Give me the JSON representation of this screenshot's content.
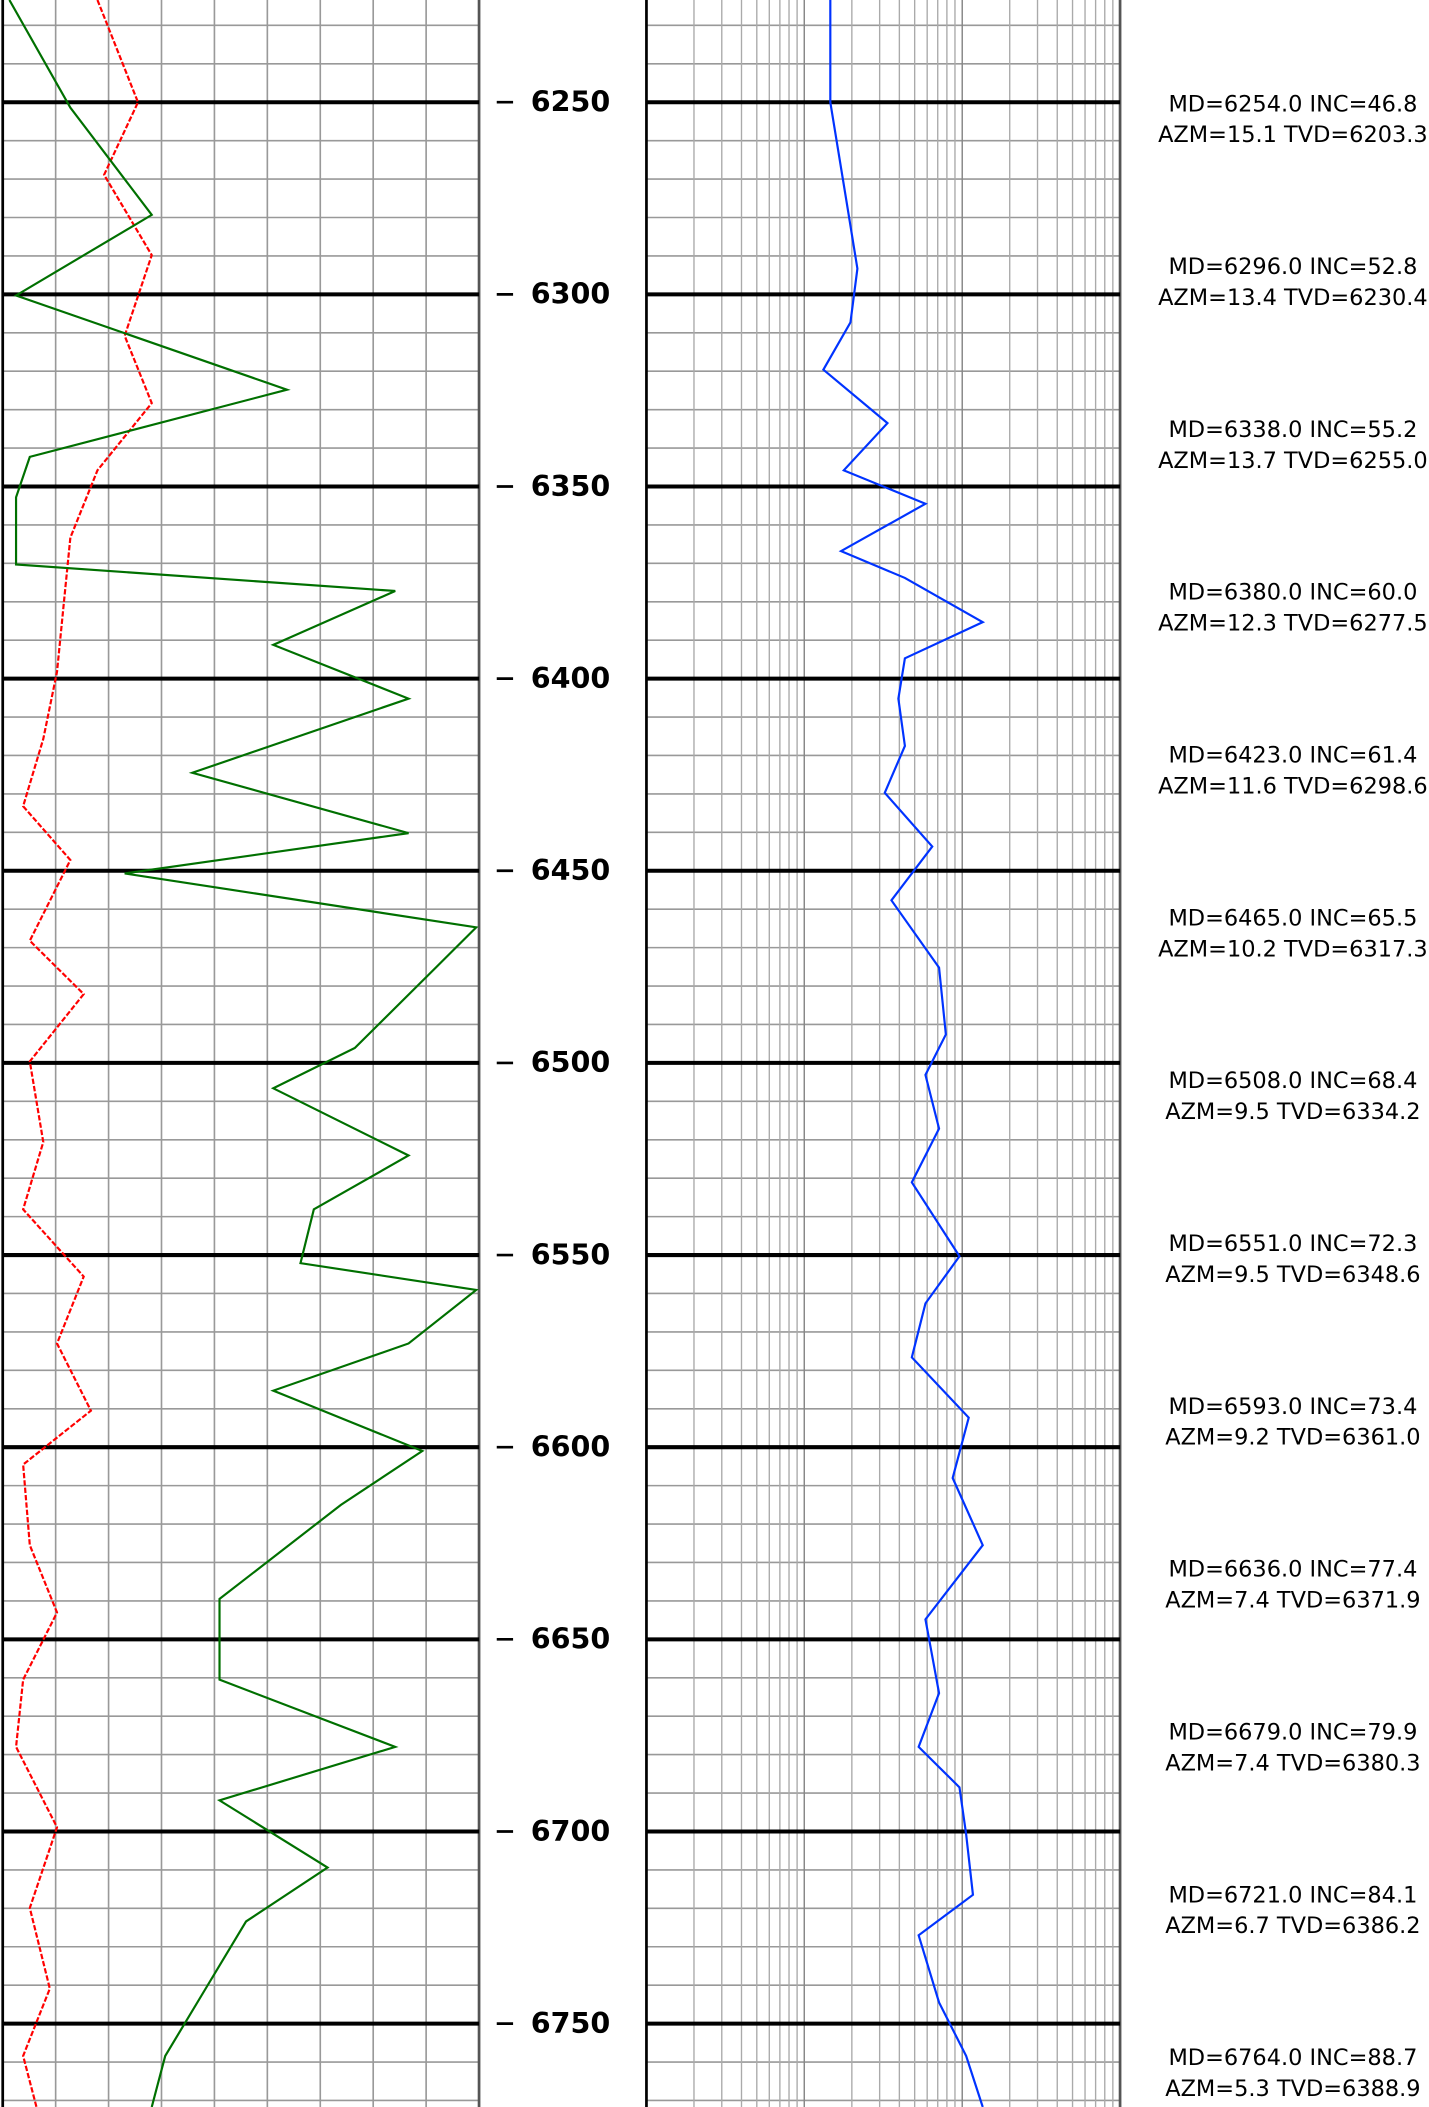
{
  "chart_data": {
    "type": "line",
    "ylim": [
      6223.4,
      6771.7
    ],
    "yticks": [
      6250,
      6300,
      6350,
      6400,
      6450,
      6500,
      6550,
      6600,
      6650,
      6700,
      6750
    ],
    "tracks": [
      {
        "xlim": [
          0,
          100
        ],
        "log": false,
        "series": [
          {
            "color": "#ff0000",
            "depths": [
              6223.4,
              6250.0,
              6268.9,
              6289.8,
              6310.8,
              6328.3,
              6345.8,
              6363.3,
              6380.7,
              6398.2,
              6415.7,
              6433.2,
              6447.2,
              6468.2,
              6482.1,
              6499.6,
              6520.6,
              6538.1,
              6555.6,
              6573.0,
              6590.5,
              6604.5,
              6625.5,
              6643.0,
              6660.5,
              6678.0,
              6698.9,
              6719.9,
              6740.9,
              6758.4,
              6771.7
            ],
            "values": [
              19.9,
              28.4,
              21.3,
              31.3,
              25.6,
              31.3,
              19.9,
              14.2,
              12.8,
              11.4,
              8.5,
              4.3,
              14.2,
              5.7,
              17.0,
              5.7,
              8.5,
              4.3,
              17.0,
              11.4,
              18.5,
              4.3,
              5.7,
              11.4,
              4.3,
              2.8,
              11.4,
              5.7,
              9.9,
              4.3,
              7.1
            ]
          },
          {
            "color": "#007000",
            "depths": [
              6223.4,
              6251.4,
              6279.3,
              6300.3,
              6324.8,
              6342.3,
              6352.8,
              6370.3,
              6377.2,
              6391.2,
              6405.2,
              6424.5,
              6440.2,
              6450.7,
              6464.7,
              6475.2,
              6496.1,
              6506.6,
              6524.1,
              6538.1,
              6552.1,
              6559.1,
              6573.0,
              6585.3,
              6601.0,
              6615.0,
              6639.5,
              6660.5,
              6678.0,
              6691.9,
              6709.4,
              6723.4,
              6740.9,
              6758.4,
              6771.7
            ],
            "values": [
              1.4,
              14.2,
              31.3,
              2.8,
              59.7,
              5.7,
              2.8,
              2.8,
              82.4,
              56.8,
              85.2,
              39.8,
              85.2,
              25.6,
              99.4,
              90.9,
              73.9,
              56.8,
              85.2,
              65.3,
              62.5,
              99.4,
              85.2,
              56.8,
              88.1,
              71.0,
              45.5,
              45.5,
              82.4,
              45.5,
              68.2,
              51.1,
              42.6,
              34.1,
              31.3
            ]
          }
        ]
      },
      {
        "xlim": [
          1,
          1000
        ],
        "log": true,
        "series": [
          {
            "color": "#0033ff",
            "depths": [
              6223.4,
              6250.0,
              6275.8,
              6293.3,
              6307.3,
              6319.6,
              6333.5,
              6345.8,
              6354.5,
              6366.8,
              6373.8,
              6385.3,
              6394.7,
              6405.2,
              6417.5,
              6429.7,
              6443.7,
              6457.7,
              6475.2,
              6492.6,
              6503.1,
              6517.1,
              6531.1,
              6550.3,
              6562.6,
              6576.6,
              6592.3,
              6608.0,
              6625.5,
              6644.8,
              6664.0,
              6678.0,
              6688.5,
              6700.7,
              6716.5,
              6727.0,
              6744.5,
              6758.4,
              6771.7
            ],
            "values": [
              14.6,
              14.6,
              18.5,
              21.7,
              19.6,
              13.2,
              33.6,
              17.8,
              58.5,
              17.1,
              43.4,
              135,
              43.4,
              39.4,
              43.4,
              32.3,
              64.6,
              35.6,
              71.3,
              78.8,
              58.5,
              71.3,
              48.0,
              96.1,
              58.5,
              48.0,
              110,
              87.1,
              135,
              58.5,
              71.3,
              53.0,
              96.1,
              106,
              117,
              53.0,
              71.3,
              106,
              135
            ]
          }
        ]
      }
    ],
    "annotations": [
      {
        "lines": [
          "MD=6254.0 INC=46.8",
          "AZM=15.1 TVD=6203.3"
        ]
      },
      {
        "lines": [
          "MD=6296.0 INC=52.8",
          "AZM=13.4 TVD=6230.4"
        ]
      },
      {
        "lines": [
          "MD=6338.0 INC=55.2",
          "AZM=13.7 TVD=6255.0"
        ]
      },
      {
        "lines": [
          "MD=6380.0 INC=60.0",
          "AZM=12.3 TVD=6277.5"
        ]
      },
      {
        "lines": [
          "MD=6423.0 INC=61.4",
          "AZM=11.6 TVD=6298.6"
        ]
      },
      {
        "lines": [
          "MD=6465.0 INC=65.5",
          "AZM=10.2 TVD=6317.3"
        ]
      },
      {
        "lines": [
          "MD=6508.0 INC=68.4",
          "AZM=9.5 TVD=6334.2"
        ]
      },
      {
        "lines": [
          "MD=6551.0 INC=72.3",
          "AZM=9.5 TVD=6348.6"
        ]
      },
      {
        "lines": [
          "MD=6593.0 INC=73.4",
          "AZM=9.2 TVD=6361.0"
        ]
      },
      {
        "lines": [
          "MD=6636.0 INC=77.4",
          "AZM=7.4 TVD=6371.9"
        ]
      },
      {
        "lines": [
          "MD=6679.0 INC=79.9",
          "AZM=7.4 TVD=6380.3"
        ]
      },
      {
        "lines": [
          "MD=6721.0 INC=84.1",
          "AZM=6.7 TVD=6386.2"
        ]
      },
      {
        "lines": [
          "MD=6764.0 INC=88.7",
          "AZM=5.3 TVD=6388.9"
        ]
      }
    ]
  }
}
